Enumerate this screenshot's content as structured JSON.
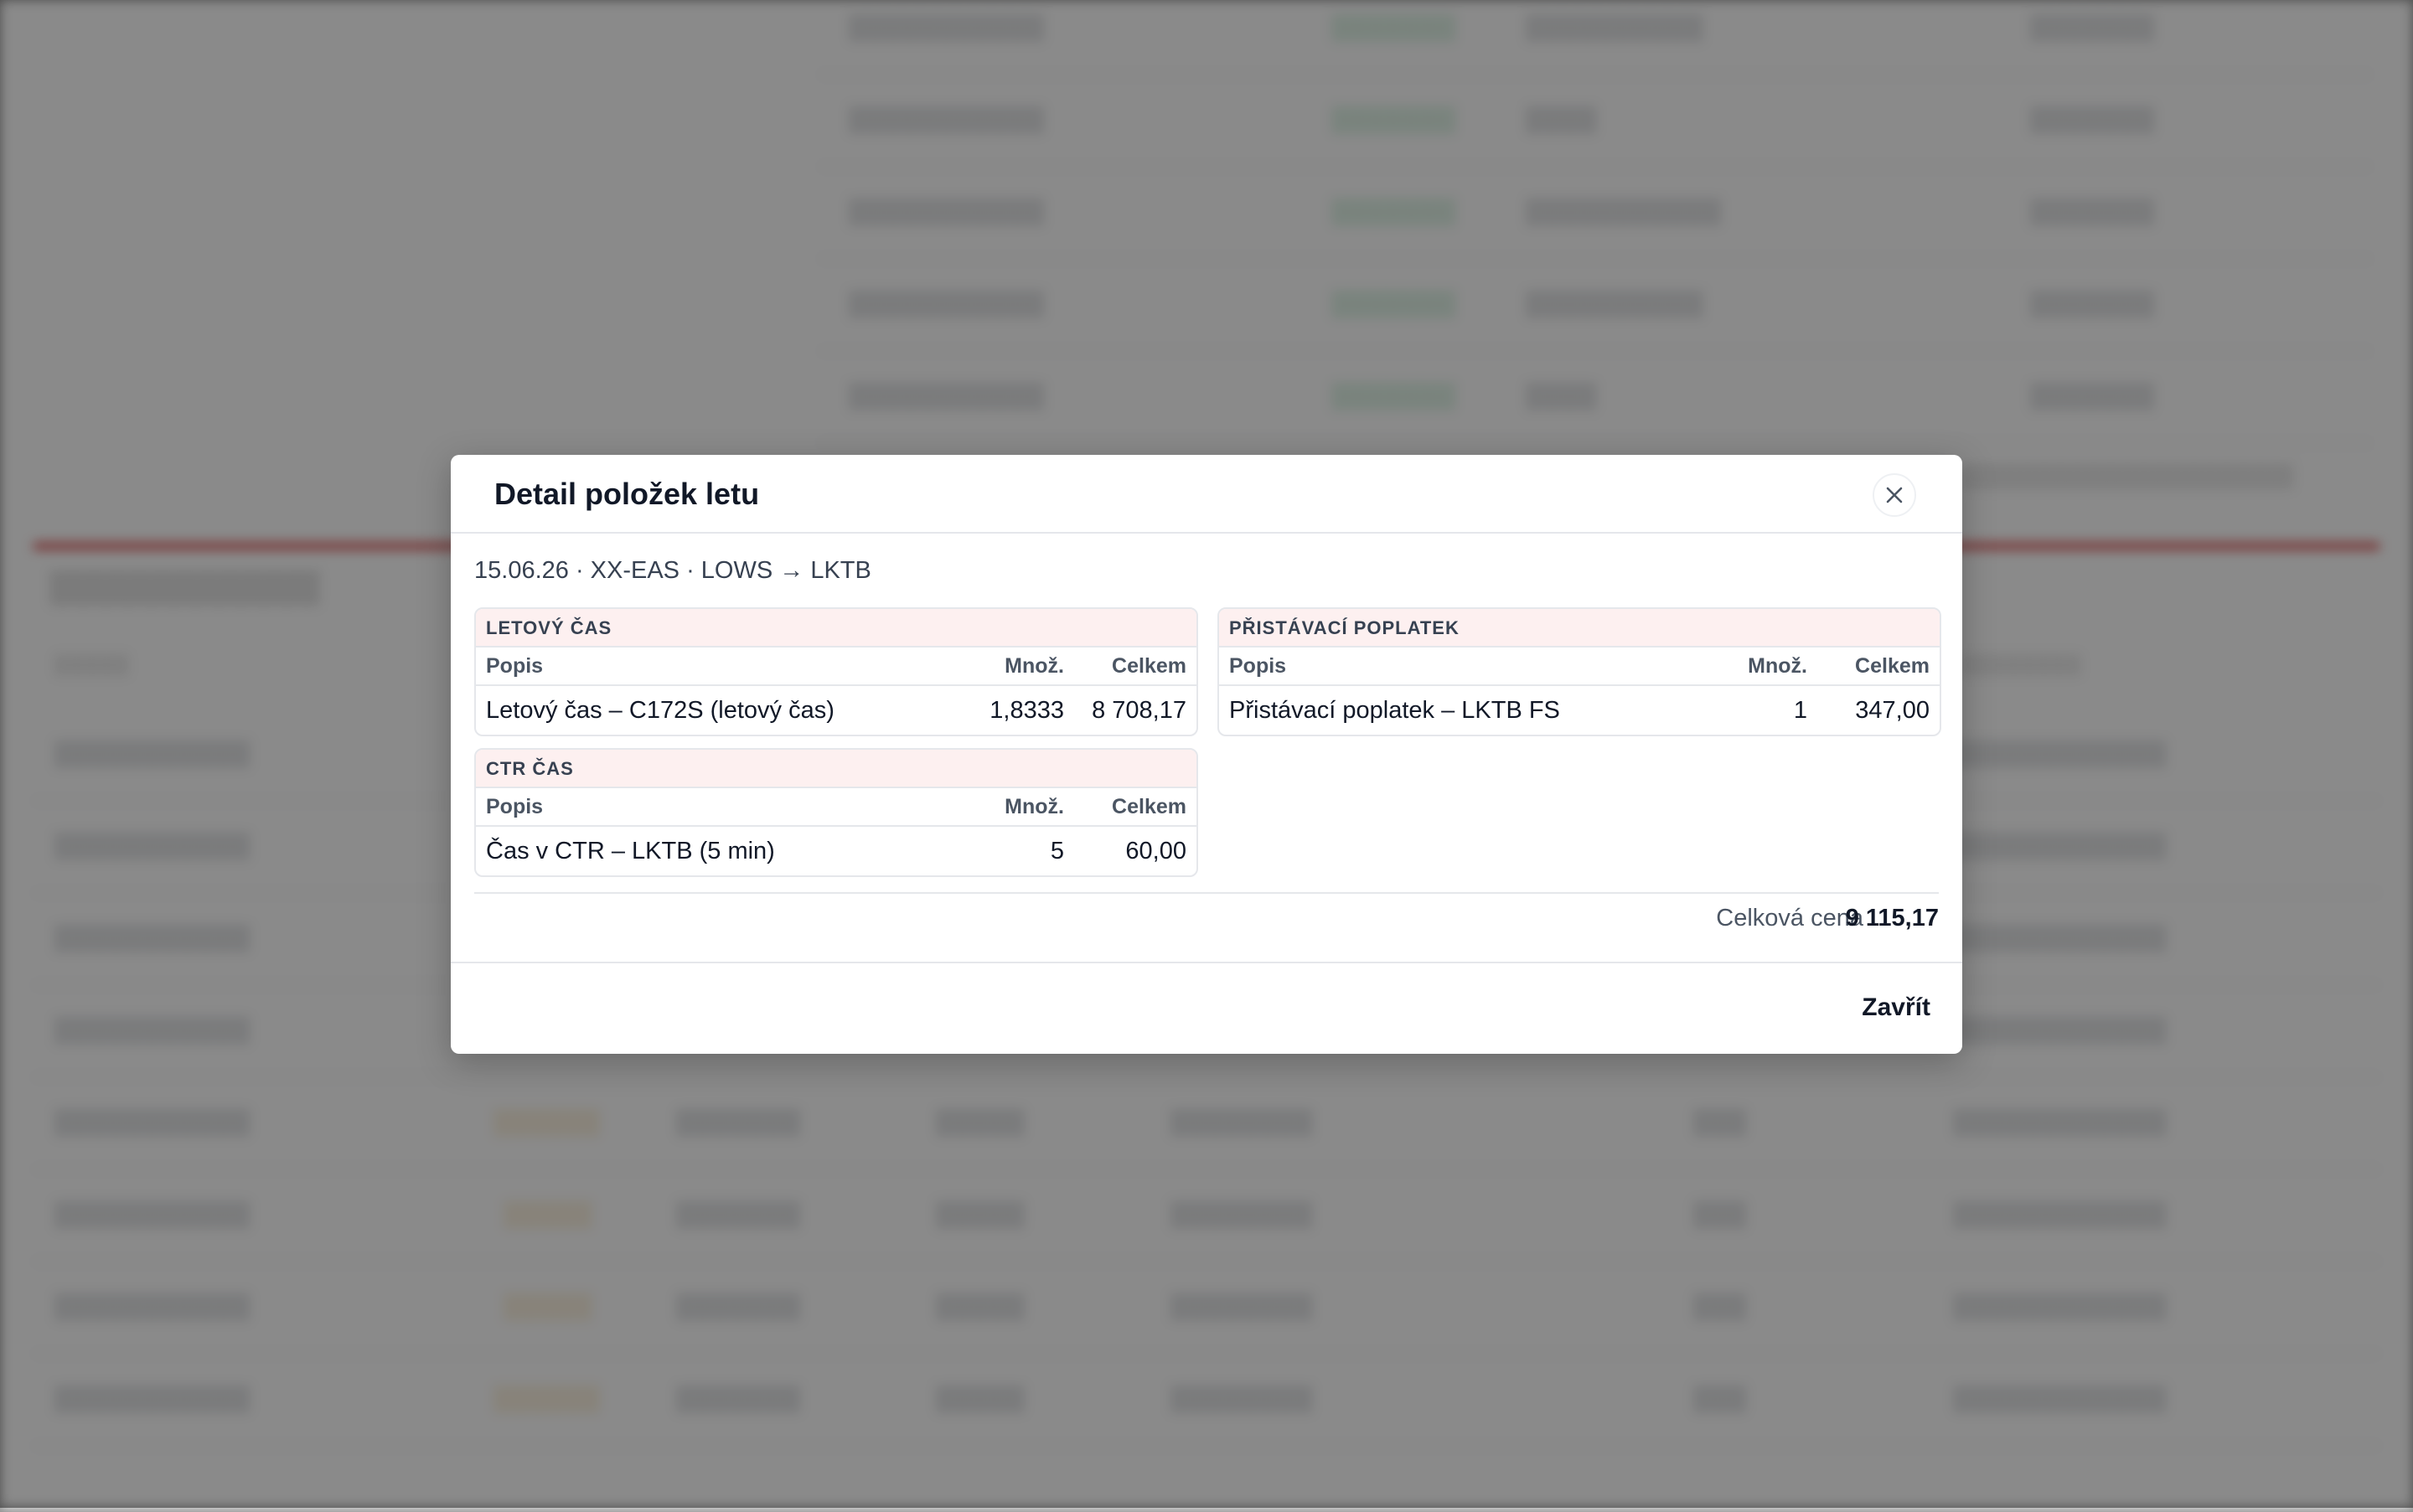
{
  "modal": {
    "title": "Detail položek letu",
    "subtitle": "15.06.26 · XX-EAS · LOWS → LKTB",
    "close_icon": "close-icon",
    "sections": [
      {
        "id": "letovy-cas",
        "heading": "LETOVÝ ČAS",
        "columns": {
          "desc": "Popis",
          "qty": "Množ.",
          "total": "Celkem"
        },
        "rows": [
          {
            "desc": "Letový čas – C172S (letový čas)",
            "qty": "1,8333",
            "total": "8 708,17"
          }
        ]
      },
      {
        "id": "pristavaci-poplatek",
        "heading": "PŘISTÁVACÍ POPLATEK",
        "columns": {
          "desc": "Popis",
          "qty": "Množ.",
          "total": "Celkem"
        },
        "rows": [
          {
            "desc": "Přistávací poplatek – LKTB FS",
            "qty": "1",
            "total": "347,00"
          }
        ]
      },
      {
        "id": "ctr-cas",
        "heading": "CTR ČAS",
        "columns": {
          "desc": "Popis",
          "qty": "Množ.",
          "total": "Celkem"
        },
        "rows": [
          {
            "desc": "Čas v CTR – LKTB (5 min)",
            "qty": "5",
            "total": "60,00"
          }
        ]
      }
    ],
    "total_label": "Celková cena",
    "total_value": "9 115,17",
    "footer_close_label": "Zavřít"
  },
  "colors": {
    "section_header_bg": "#fdf0f0",
    "accent_red": "#d94a4a",
    "positive_green": "#16a34a",
    "warning_orange": "#e19a1b"
  }
}
